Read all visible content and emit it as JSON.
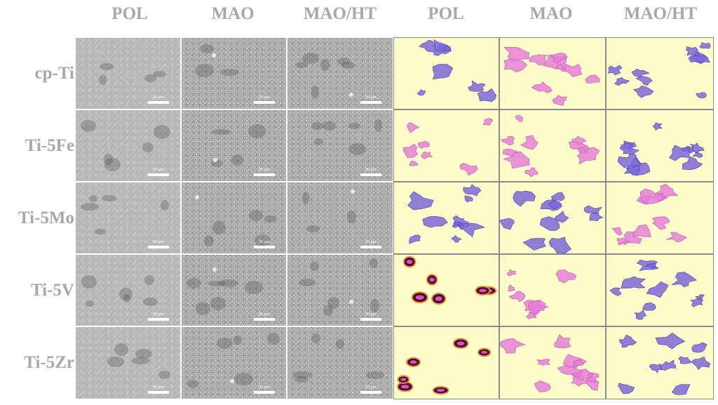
{
  "column_headers": [
    "POL",
    "MAO",
    "MAO/HT",
    "POL",
    "MAO",
    "MAO/HT"
  ],
  "row_labels": [
    "cp-Ti",
    "Ti-5Fe",
    "Ti-5Mo",
    "Ti-5V",
    "Ti-5Zr"
  ],
  "scale_bar_label": "50 μm",
  "colors": {
    "header_text": "#a8a8a8",
    "stain_background": "#fdfdc9",
    "cell_purple": "#7b6ad8",
    "cell_pink": "#e57fd6",
    "cell_dark_core": "#3a0a3a",
    "cell_orange_rim": "#f08a2a"
  },
  "panels": [
    [
      "sem",
      "sem-mao",
      "sem-mao",
      "stain-purple",
      "stain-pink",
      "stain-purple"
    ],
    [
      "sem",
      "sem-mao",
      "sem-mao",
      "stain-pink",
      "stain-pink",
      "stain-purple"
    ],
    [
      "sem",
      "sem-mao",
      "sem-mao",
      "stain-purple",
      "stain-purple",
      "stain-pink"
    ],
    [
      "sem",
      "sem-mao",
      "sem-mao",
      "stain-round",
      "stain-pink",
      "stain-purple"
    ],
    [
      "sem",
      "sem-mao",
      "sem-mao",
      "stain-round",
      "stain-pink",
      "stain-purple"
    ]
  ]
}
